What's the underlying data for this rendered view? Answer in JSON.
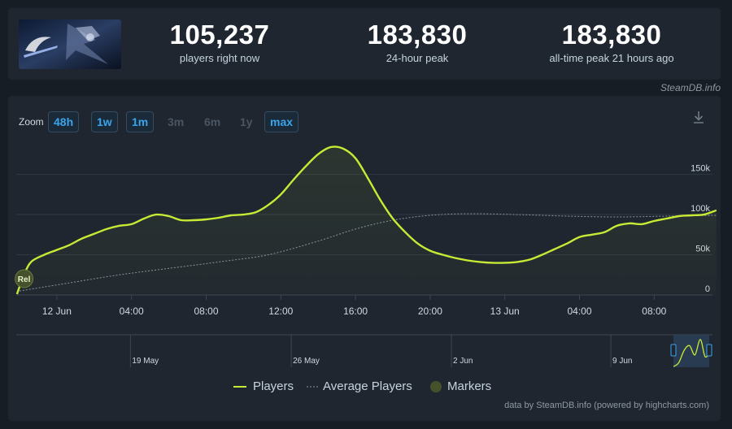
{
  "stats": [
    {
      "value": "105,237",
      "label": "players right now"
    },
    {
      "value": "183,830",
      "label": "24-hour peak"
    },
    {
      "value": "183,830",
      "label": "all-time peak 21 hours ago"
    }
  ],
  "source_label": "SteamDB.info",
  "zoom": {
    "label": "Zoom",
    "buttons": [
      {
        "label": "48h",
        "enabled": true
      },
      {
        "label": "1w",
        "enabled": true
      },
      {
        "label": "1m",
        "enabled": true
      },
      {
        "label": "3m",
        "enabled": false
      },
      {
        "label": "6m",
        "enabled": false
      },
      {
        "label": "1y",
        "enabled": false
      },
      {
        "label": "max",
        "enabled": true
      }
    ]
  },
  "legend": {
    "players": "Players",
    "average": "Average Players",
    "markers": "Markers"
  },
  "credit": "data by SteamDB.info (powered by highcharts.com)",
  "colors": {
    "players": "#c8ea35",
    "average": "#8b939b",
    "marker": "#44512a",
    "accent": "#3aa5ec"
  },
  "chart_data": {
    "type": "line",
    "x_ticks": [
      {
        "h": 3,
        "label": "12 Jun"
      },
      {
        "h": 9,
        "label": "04:00"
      },
      {
        "h": 15,
        "label": "08:00"
      },
      {
        "h": 21,
        "label": "12:00"
      },
      {
        "h": 27,
        "label": "16:00"
      },
      {
        "h": 33,
        "label": "20:00"
      },
      {
        "h": 39,
        "label": "13 Jun"
      },
      {
        "h": 45,
        "label": "04:00"
      },
      {
        "h": 51,
        "label": "08:00"
      }
    ],
    "ylim": [
      0,
      190000
    ],
    "y_ticks": [
      {
        "v": 0,
        "label": "0"
      },
      {
        "v": 50000,
        "label": "50k"
      },
      {
        "v": 100000,
        "label": "100k"
      },
      {
        "v": 150000,
        "label": "150k"
      }
    ],
    "series": [
      {
        "name": "Players",
        "points": [
          [
            -0.2,
            1000
          ],
          [
            0,
            10000
          ],
          [
            0.5,
            30000
          ],
          [
            1,
            42000
          ],
          [
            2,
            50000
          ],
          [
            3,
            56000
          ],
          [
            4,
            62000
          ],
          [
            5,
            70000
          ],
          [
            6,
            76000
          ],
          [
            7,
            82000
          ],
          [
            8,
            86000
          ],
          [
            9,
            88000
          ],
          [
            10,
            95000
          ],
          [
            11,
            100000
          ],
          [
            12,
            98000
          ],
          [
            13,
            93000
          ],
          [
            14,
            93000
          ],
          [
            15,
            94000
          ],
          [
            16,
            96000
          ],
          [
            17,
            99000
          ],
          [
            18,
            100000
          ],
          [
            19,
            103000
          ],
          [
            20,
            112000
          ],
          [
            21,
            125000
          ],
          [
            22,
            143000
          ],
          [
            23,
            160000
          ],
          [
            24,
            175000
          ],
          [
            25,
            183830
          ],
          [
            26,
            182000
          ],
          [
            27,
            170000
          ],
          [
            28,
            145000
          ],
          [
            29,
            118000
          ],
          [
            30,
            95000
          ],
          [
            31,
            78000
          ],
          [
            32,
            64000
          ],
          [
            33,
            55000
          ],
          [
            34,
            50000
          ],
          [
            35,
            46000
          ],
          [
            36,
            43000
          ],
          [
            37,
            41000
          ],
          [
            38,
            40000
          ],
          [
            39,
            40000
          ],
          [
            40,
            41000
          ],
          [
            41,
            44000
          ],
          [
            42,
            50000
          ],
          [
            43,
            57000
          ],
          [
            44,
            64000
          ],
          [
            45,
            72000
          ],
          [
            46,
            75000
          ],
          [
            47,
            78000
          ],
          [
            48,
            86000
          ],
          [
            49,
            89000
          ],
          [
            50,
            88000
          ],
          [
            51,
            92000
          ],
          [
            52,
            95000
          ],
          [
            53,
            98000
          ],
          [
            54,
            99000
          ],
          [
            55,
            100000
          ],
          [
            56,
            105237
          ]
        ]
      },
      {
        "name": "Average Players",
        "points": [
          [
            0,
            5000
          ],
          [
            4,
            15000
          ],
          [
            8,
            25000
          ],
          [
            12,
            33000
          ],
          [
            16,
            41000
          ],
          [
            20,
            50000
          ],
          [
            24,
            67000
          ],
          [
            27,
            82000
          ],
          [
            30,
            93000
          ],
          [
            33,
            99000
          ],
          [
            36,
            101000
          ],
          [
            40,
            100000
          ],
          [
            44,
            98000
          ],
          [
            48,
            97000
          ],
          [
            52,
            98000
          ],
          [
            56,
            99000
          ]
        ]
      }
    ],
    "markers": [
      {
        "h": 0.3,
        "label": "Rel"
      }
    ],
    "navigator": {
      "date_labels": [
        {
          "label": "19 May",
          "t": 0.164
        },
        {
          "label": "26 May",
          "t": 0.395
        },
        {
          "label": "2 Jun",
          "t": 0.625
        },
        {
          "label": "9 Jun",
          "t": 0.854
        }
      ],
      "points": [
        [
          0,
          0.02
        ],
        [
          0.15,
          0.15
        ],
        [
          0.3,
          0.55
        ],
        [
          0.45,
          0.7
        ],
        [
          0.6,
          0.4
        ],
        [
          0.75,
          0.9
        ],
        [
          0.88,
          0.35
        ],
        [
          1,
          0.45
        ]
      ]
    }
  }
}
